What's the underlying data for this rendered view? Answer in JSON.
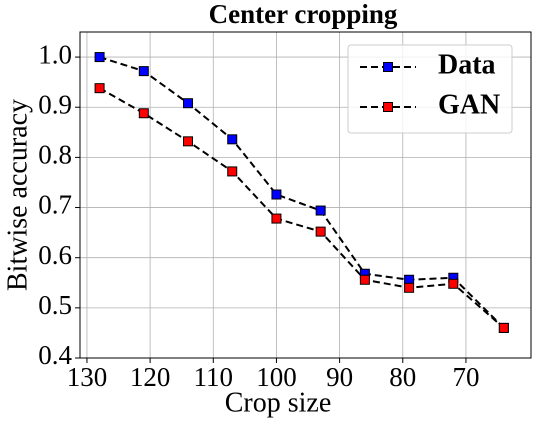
{
  "chart_data": {
    "type": "line",
    "title": "Center cropping",
    "xlabel": "Crop size",
    "ylabel": "Bitwise accuracy",
    "x": [
      128,
      121,
      114,
      107,
      100,
      93,
      86,
      79,
      72,
      64
    ],
    "series": [
      {
        "name": "Data",
        "color": "#0000ff",
        "values": [
          1.0,
          0.972,
          0.908,
          0.836,
          0.726,
          0.694,
          0.568,
          0.556,
          0.56,
          0.46
        ]
      },
      {
        "name": "GAN",
        "color": "#ff0000",
        "values": [
          0.938,
          0.888,
          0.832,
          0.772,
          0.678,
          0.652,
          0.556,
          0.54,
          0.548,
          0.46
        ]
      }
    ],
    "line_color": "#000000",
    "xlim": [
      131.1,
      59.7
    ],
    "xticks": [
      130,
      120,
      110,
      100,
      90,
      80,
      70
    ],
    "ylim": [
      0.4,
      1.05
    ],
    "yticks": [
      {
        "value": 1,
        "label": "1.0"
      },
      0.9,
      0.8,
      0.7,
      0.6,
      0.5,
      0.4
    ],
    "grid": true,
    "legend": "upper right"
  }
}
